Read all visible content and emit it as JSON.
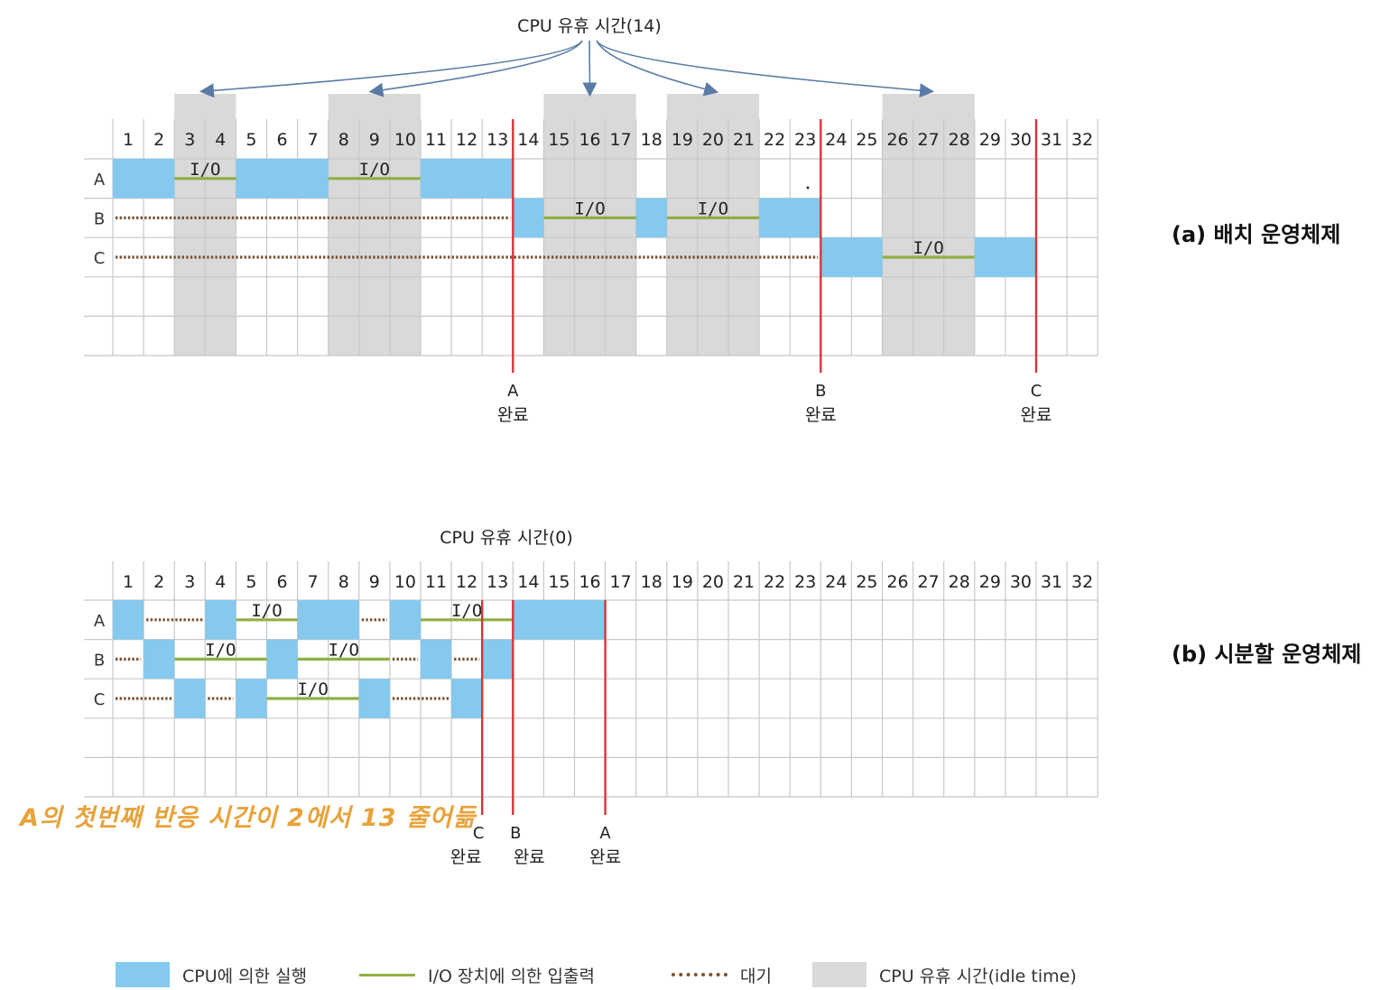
{
  "colors": {
    "cpu": "#85c9ee",
    "io": "#8db043",
    "wait": "#7a5230",
    "idle": "#d9d9d9",
    "completion": "#d9343a",
    "grid": "#c8c8c8",
    "arrow": "#5a7ba6"
  },
  "time_units": [
    "1",
    "2",
    "3",
    "4",
    "5",
    "6",
    "7",
    "8",
    "9",
    "10",
    "11",
    "12",
    "13",
    "14",
    "15",
    "16",
    "17",
    "18",
    "19",
    "20",
    "21",
    "22",
    "23",
    "24",
    "25",
    "26",
    "27",
    "28",
    "29",
    "30",
    "31",
    "32"
  ],
  "io_label": "I/O",
  "batch": {
    "title": "(a) 배치 운영체제",
    "idle_label": "CPU 유휴 시간(14)",
    "rows": [
      "A",
      "B",
      "C"
    ],
    "idle_periods": [
      [
        3,
        4
      ],
      [
        8,
        10
      ],
      [
        15,
        17
      ],
      [
        19,
        21
      ],
      [
        26,
        28
      ]
    ],
    "cpu": [
      [
        "A",
        1,
        2
      ],
      [
        "A",
        5,
        7
      ],
      [
        "A",
        11,
        13
      ],
      [
        "B",
        14,
        14
      ],
      [
        "B",
        18,
        18
      ],
      [
        "B",
        22,
        23
      ],
      [
        "C",
        24,
        25
      ],
      [
        "C",
        29,
        30
      ]
    ],
    "io": [
      [
        "A",
        3,
        4
      ],
      [
        "A",
        8,
        10
      ],
      [
        "B",
        15,
        17
      ],
      [
        "B",
        19,
        21
      ],
      [
        "C",
        26,
        28
      ]
    ],
    "wait": [
      [
        "B",
        1,
        13
      ],
      [
        "C",
        1,
        23
      ]
    ],
    "completions": [
      {
        "job": "A",
        "after": 13,
        "label": "완료"
      },
      {
        "job": "B",
        "after": 23,
        "label": "완료"
      },
      {
        "job": "C",
        "after": 30,
        "label": "완료"
      }
    ]
  },
  "timeshare": {
    "title": "(b) 시분할 운영체제",
    "idle_label": "CPU 유휴 시간(0)",
    "rows": [
      "A",
      "B",
      "C"
    ],
    "cpu": [
      [
        "A",
        1,
        1
      ],
      [
        "A",
        4,
        4
      ],
      [
        "A",
        7,
        8
      ],
      [
        "A",
        10,
        10
      ],
      [
        "A",
        14,
        16
      ],
      [
        "B",
        2,
        2
      ],
      [
        "B",
        6,
        6
      ],
      [
        "B",
        11,
        11
      ],
      [
        "B",
        13,
        13
      ],
      [
        "C",
        3,
        3
      ],
      [
        "C",
        5,
        5
      ],
      [
        "C",
        9,
        9
      ],
      [
        "C",
        12,
        12
      ]
    ],
    "io": [
      [
        "A",
        5,
        6
      ],
      [
        "A",
        11,
        13
      ],
      [
        "B",
        3,
        5
      ],
      [
        "B",
        7,
        9
      ],
      [
        "C",
        6,
        8
      ]
    ],
    "wait": [
      [
        "A",
        2,
        3
      ],
      [
        "A",
        9,
        9
      ],
      [
        "B",
        1,
        1
      ],
      [
        "B",
        10,
        10
      ],
      [
        "B",
        12,
        12
      ],
      [
        "C",
        1,
        2
      ],
      [
        "C",
        4,
        4
      ],
      [
        "C",
        10,
        11
      ]
    ],
    "completions": [
      {
        "job": "C",
        "after": 12,
        "label": "완료"
      },
      {
        "job": "B",
        "after": 13,
        "label": "완료"
      },
      {
        "job": "A",
        "after": 16,
        "label": "완료"
      }
    ]
  },
  "note": "A의 첫번째 반응 시간이 2에서 13 줄어듦",
  "legend": {
    "cpu": "CPU에 의한 실행",
    "io": "I/O 장치에 의한 입출력",
    "wait": "대기",
    "idle": "CPU 유휴 시간(idle time)"
  }
}
